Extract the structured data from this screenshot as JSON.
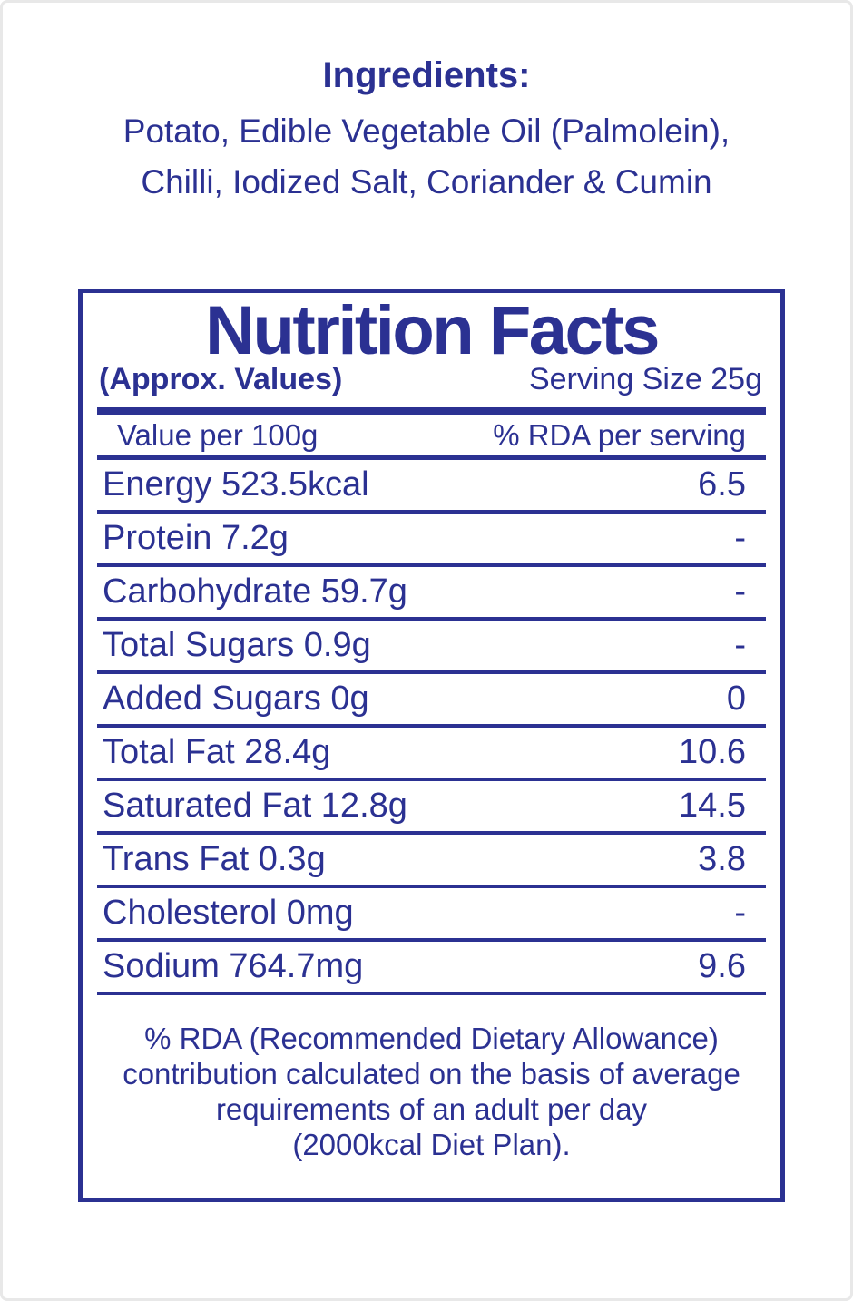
{
  "colors": {
    "primary_blue": "#2b3192",
    "frame_gray": "#e8e8e8",
    "background": "#ffffff"
  },
  "ingredients": {
    "title": "Ingredients:",
    "line1": "Potato, Edible Vegetable Oil (Palmolein),",
    "line2": "Chilli, Iodized Salt, Coriander & Cumin"
  },
  "nutrition_facts": {
    "title": "Nutrition Facts",
    "approx_label": "(Approx. Values)",
    "serving_size": "Serving Size 25g",
    "columns": {
      "left": "Value per 100g",
      "right": "% RDA per serving"
    },
    "rows": [
      {
        "label": "Energy 523.5kcal",
        "value": "6.5"
      },
      {
        "label": "Protein 7.2g",
        "value": "-"
      },
      {
        "label": "Carbohydrate 59.7g",
        "value": "-"
      },
      {
        "label": "Total Sugars 0.9g",
        "value": "-"
      },
      {
        "label": "Added Sugars 0g",
        "value": "0"
      },
      {
        "label": "Total Fat 28.4g",
        "value": "10.6"
      },
      {
        "label": "Saturated Fat 12.8g",
        "value": "14.5"
      },
      {
        "label": "Trans Fat 0.3g",
        "value": "3.8"
      },
      {
        "label": "Cholesterol 0mg",
        "value": "-"
      },
      {
        "label": "Sodium 764.7mg",
        "value": "9.6"
      }
    ],
    "footnote": {
      "line1": "% RDA (Recommended Dietary Allowance)",
      "line2": "contribution calculated on the basis of average",
      "line3": "requirements of an adult per day",
      "line4": "(2000kcal Diet Plan)."
    }
  }
}
